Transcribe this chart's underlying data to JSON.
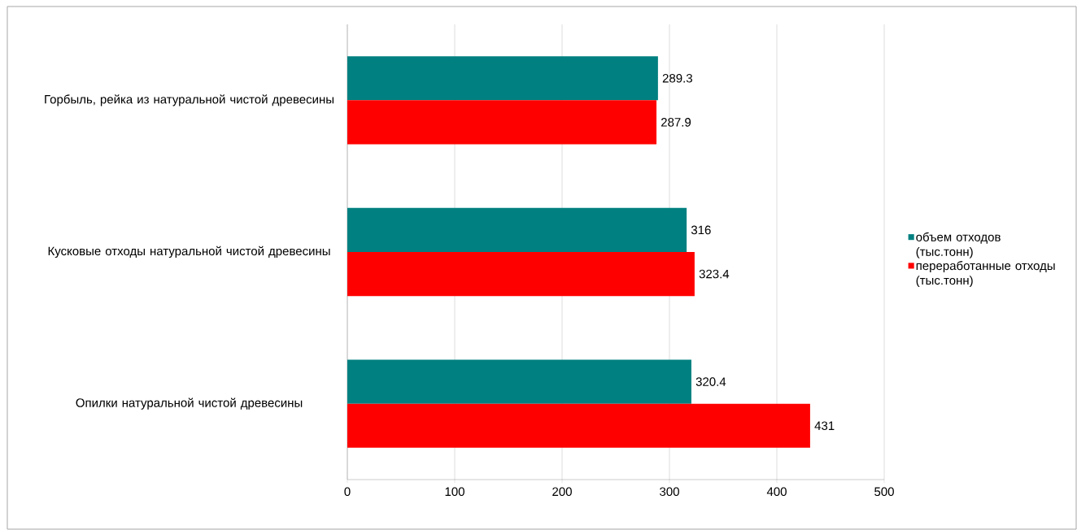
{
  "chart_data": {
    "type": "bar",
    "orientation": "horizontal",
    "categories": [
      "Горбыль, рейка из натуральной чистой древесины",
      "Кусковые отходы натуральной чистой древесины",
      "Опилки натуральной чистой древесины"
    ],
    "series": [
      {
        "name": "объем отходов (тыс.тонн)",
        "color": "#008080",
        "values": [
          289.3,
          316,
          320.4
        ]
      },
      {
        "name": "переработанные отходы (тыс.тонн)",
        "color": "#ff0000",
        "values": [
          287.9,
          323.4,
          431
        ]
      }
    ],
    "xlim": [
      0,
      500
    ],
    "xticks": [
      0,
      100,
      200,
      300,
      400,
      500
    ],
    "grid": "x",
    "legend": "right",
    "data_labels": true
  }
}
